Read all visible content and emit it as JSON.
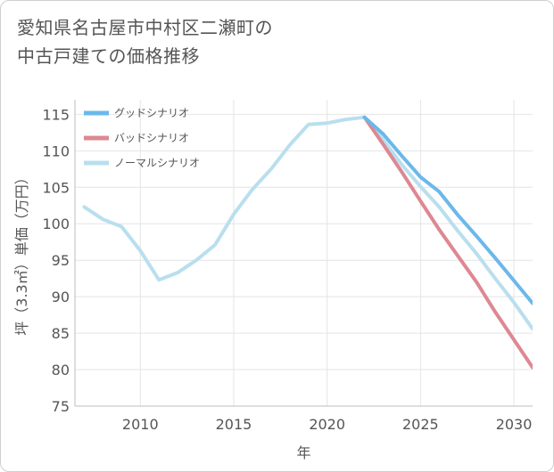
{
  "title_lines": [
    "愛知県名古屋市中村区二瀬町の",
    "中古戸建ての価格推移"
  ],
  "chart_data": {
    "type": "line",
    "title": "愛知県名古屋市中村区二瀬町の中古戸建ての価格推移",
    "xlabel": "年",
    "ylabel": "坪（3.3㎡）単価（万円）",
    "xlim": [
      2006.5,
      2031
    ],
    "ylim": [
      75,
      117
    ],
    "xticks": [
      2010,
      2015,
      2020,
      2025,
      2030
    ],
    "yticks": [
      75,
      80,
      85,
      90,
      95,
      100,
      105,
      110,
      115
    ],
    "grid": true,
    "legend_position": "top-left",
    "series": [
      {
        "name": "グッドシナリオ",
        "color": "#6cb8ea",
        "x": [
          2022,
          2023,
          2024,
          2025,
          2026,
          2027,
          2028,
          2029,
          2030,
          2031
        ],
        "y": [
          114.6,
          112.3,
          109.3,
          106.4,
          104.4,
          101.2,
          98.3,
          95.3,
          92.2,
          89.1
        ]
      },
      {
        "name": "バッドシナリオ",
        "color": "#dd8892",
        "x": [
          2022,
          2023,
          2024,
          2025,
          2026,
          2027,
          2028,
          2029,
          2030,
          2031
        ],
        "y": [
          114.6,
          110.9,
          107.1,
          103.1,
          99.2,
          95.6,
          92.0,
          87.9,
          84.1,
          80.3
        ]
      },
      {
        "name": "ノーマルシナリオ",
        "color": "#b9dfee",
        "x": [
          2007,
          2008,
          2009,
          2010,
          2011,
          2012,
          2013,
          2014,
          2015,
          2016,
          2017,
          2018,
          2019,
          2020,
          2021,
          2022,
          2023,
          2024,
          2025,
          2026,
          2027,
          2028,
          2029,
          2030,
          2031
        ],
        "y": [
          102.3,
          100.6,
          99.6,
          96.3,
          92.3,
          93.3,
          95.0,
          97.1,
          101.3,
          104.7,
          107.5,
          110.8,
          113.6,
          113.8,
          114.3,
          114.6,
          111.5,
          108.1,
          105.1,
          102.3,
          99.0,
          95.9,
          92.5,
          89.2,
          85.6
        ]
      }
    ]
  }
}
